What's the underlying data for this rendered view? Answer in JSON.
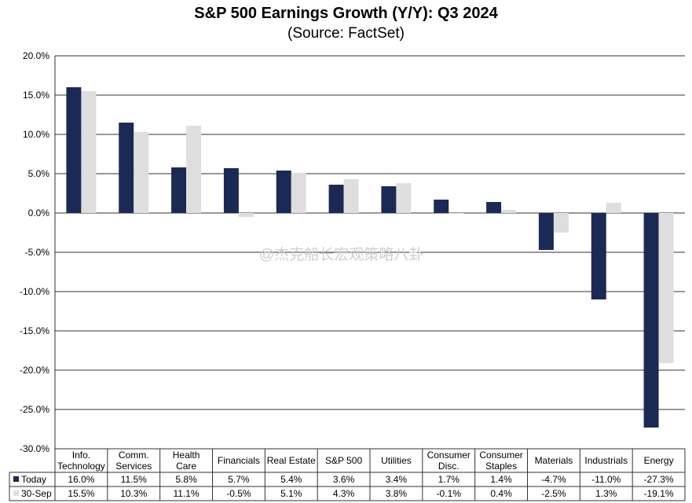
{
  "title": "S&P 500 Earnings Growth (Y/Y): Q3 2024",
  "subtitle": "(Source: FactSet)",
  "watermark": "@杰克船长宏观策略八卦",
  "colors": {
    "today": "#1b2a55",
    "sep30": "#dedede",
    "grid": "#333333"
  },
  "chart_data": {
    "type": "bar",
    "title": "S&P 500 Earnings Growth (Y/Y): Q3 2024",
    "subtitle": "(Source: FactSet)",
    "categories": [
      [
        "Info.",
        "Technology"
      ],
      [
        "Comm.",
        "Services"
      ],
      [
        "Health",
        "Care"
      ],
      [
        "Financials"
      ],
      [
        "Real Estate"
      ],
      [
        "S&P 500"
      ],
      [
        "Utilities"
      ],
      [
        "Consumer",
        "Disc."
      ],
      [
        "Consumer",
        "Staples"
      ],
      [
        "Materials"
      ],
      [
        "Industrials"
      ],
      [
        "Energy"
      ]
    ],
    "series": [
      {
        "name": "Today",
        "values": [
          16.0,
          11.5,
          5.8,
          5.7,
          5.4,
          3.6,
          3.4,
          1.7,
          1.4,
          -4.7,
          -11.0,
          -27.3
        ],
        "labels": [
          "16.0%",
          "11.5%",
          "5.8%",
          "5.7%",
          "5.4%",
          "3.6%",
          "3.4%",
          "1.7%",
          "1.4%",
          "-4.7%",
          "-11.0%",
          "-27.3%"
        ]
      },
      {
        "name": "30-Sep",
        "values": [
          15.5,
          10.3,
          11.1,
          -0.5,
          5.1,
          4.3,
          3.8,
          -0.1,
          0.4,
          -2.5,
          1.3,
          -19.1
        ],
        "labels": [
          "15.5%",
          "10.3%",
          "11.1%",
          "-0.5%",
          "5.1%",
          "4.3%",
          "3.8%",
          "-0.1%",
          "0.4%",
          "-2.5%",
          "1.3%",
          "-19.1%"
        ]
      }
    ],
    "ylim": [
      -30,
      20
    ],
    "yticks": [
      20,
      15,
      10,
      5,
      0,
      -5,
      -10,
      -15,
      -20,
      -25,
      -30
    ],
    "ytick_labels": [
      "20.0%",
      "15.0%",
      "10.0%",
      "5.0%",
      "0.0%",
      "-5.0%",
      "-10.0%",
      "-15.0%",
      "-20.0%",
      "-25.0%",
      "-30.0%"
    ],
    "grid": true,
    "legend": "data-table"
  }
}
